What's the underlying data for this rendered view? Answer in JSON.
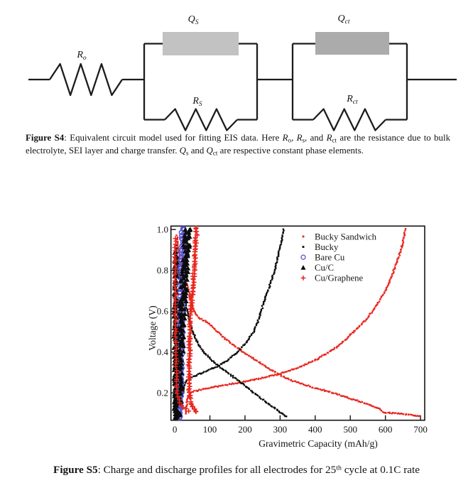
{
  "page": {
    "background": "#ffffff"
  },
  "figure_s4": {
    "component_labels": {
      "r_o": {
        "base": "R",
        "sub": "o"
      },
      "q_s": {
        "base": "Q",
        "sub": "S"
      },
      "r_s": {
        "base": "R",
        "sub": "S"
      },
      "q_ct": {
        "base": "Q",
        "sub": "ct"
      },
      "r_ct": {
        "base": "R",
        "sub": "ct"
      }
    },
    "colors": {
      "wire": "#1c1c1c",
      "q_s_box": "#c2c2c2",
      "q_ct_box": "#ababab"
    },
    "caption_segments": [
      {
        "t": "Figure S4",
        "b": true
      },
      {
        "t": ": Equivalent circuit model used for fitting EIS data. Here "
      },
      {
        "t": "R",
        "i": true
      },
      {
        "t": "o",
        "sub": true
      },
      {
        "t": ", "
      },
      {
        "t": "R",
        "i": true
      },
      {
        "t": "s",
        "sub": true
      },
      {
        "t": ", and "
      },
      {
        "t": "R",
        "i": true
      },
      {
        "t": "ct",
        "sub": true
      },
      {
        "t": " are the resistance due to bulk electrolyte, SEI layer and charge transfer. "
      },
      {
        "t": "Q",
        "i": true
      },
      {
        "t": "s",
        "sub": true
      },
      {
        "t": " and "
      },
      {
        "t": "Q",
        "i": true
      },
      {
        "t": "ct",
        "sub": true
      },
      {
        "t": " are respective constant phase elements."
      }
    ]
  },
  "figure_s5": {
    "caption_segments": [
      {
        "t": "Figure S5",
        "b": true
      },
      {
        "t": ": Charge and discharge profiles for all electrodes for 25"
      },
      {
        "t": "th",
        "sup": true
      },
      {
        "t": " cycle at 0.1C rate"
      }
    ]
  },
  "chart_data": {
    "type": "scatter",
    "title": "",
    "xlabel": "Gravimetric Capacity (mAh/g)",
    "ylabel": "Voltage (V)",
    "xlim": [
      -11,
      712
    ],
    "ylim": [
      0.066,
      1.017
    ],
    "x_ticks": [
      "0",
      "100",
      "200",
      "300",
      "400",
      "500",
      "600",
      "700"
    ],
    "x_tick_values": [
      0,
      100,
      200,
      300,
      400,
      500,
      600,
      700
    ],
    "y_ticks": [
      "0.2",
      "0.4",
      "0.6",
      "0.8",
      "1.0"
    ],
    "y_tick_values": [
      0.2,
      0.4,
      0.6,
      0.8,
      1.0
    ],
    "grid": false,
    "legend_position": "top-right",
    "axis_color": "#141414",
    "series": [
      {
        "name": "Bucky Sandwich",
        "color": "#e8261f",
        "marker": "dot",
        "branches": [
          {
            "name": "charge",
            "jitter": [
              0.8,
              0.8
            ],
            "points": [
              [
                30,
                0.1
              ],
              [
                34,
                0.15
              ],
              [
                38,
                0.185
              ],
              [
                50,
                0.205
              ],
              [
                90,
                0.222
              ],
              [
                150,
                0.24
              ],
              [
                220,
                0.262
              ],
              [
                281,
                0.286
              ],
              [
                312,
                0.3
              ],
              [
                360,
                0.33
              ],
              [
                400,
                0.36
              ],
              [
                440,
                0.4
              ],
              [
                474,
                0.44
              ],
              [
                510,
                0.5
              ],
              [
                548,
                0.565
              ],
              [
                575,
                0.63
              ],
              [
                600,
                0.7
              ],
              [
                620,
                0.78
              ],
              [
                638,
                0.865
              ],
              [
                650,
                0.935
              ],
              [
                657,
                1.005
              ]
            ]
          },
          {
            "name": "discharge",
            "jitter": [
              0.8,
              0.8
            ],
            "points": [
              [
                6,
                0.97
              ],
              [
                12,
                0.88
              ],
              [
                20,
                0.8
              ],
              [
                28,
                0.755
              ],
              [
                36,
                0.725
              ],
              [
                45,
                0.655
              ],
              [
                55,
                0.6
              ],
              [
                70,
                0.565
              ],
              [
                95,
                0.545
              ],
              [
                109,
                0.52
              ],
              [
                140,
                0.47
              ],
              [
                170,
                0.43
              ],
              [
                200,
                0.395
              ],
              [
                240,
                0.35
              ],
              [
                281,
                0.305
              ],
              [
                330,
                0.262
              ],
              [
                393,
                0.227
              ],
              [
                440,
                0.205
              ],
              [
                494,
                0.175
              ],
              [
                550,
                0.145
              ],
              [
                585,
                0.122
              ],
              [
                592,
                0.106
              ],
              [
                650,
                0.096
              ],
              [
                700,
                0.086
              ]
            ]
          }
        ]
      },
      {
        "name": "Bucky",
        "color": "#0c0c0c",
        "marker": "dot",
        "branches": [
          {
            "name": "charge",
            "jitter": [
              0.8,
              0.8
            ],
            "points": [
              [
                14,
                0.085
              ],
              [
                18,
                0.14
              ],
              [
                22,
                0.19
              ],
              [
                27,
                0.235
              ],
              [
                33,
                0.26
              ],
              [
                45,
                0.275
              ],
              [
                60,
                0.285
              ],
              [
                80,
                0.3
              ],
              [
                100,
                0.315
              ],
              [
                125,
                0.333
              ],
              [
                150,
                0.36
              ],
              [
                175,
                0.395
              ],
              [
                200,
                0.44
              ],
              [
                225,
                0.5
              ],
              [
                240,
                0.565
              ],
              [
                251,
                0.63
              ],
              [
                265,
                0.7
              ],
              [
                285,
                0.8
              ],
              [
                298,
                0.9
              ],
              [
                306,
                0.96
              ],
              [
                310,
                1.005
              ]
            ]
          },
          {
            "name": "discharge",
            "jitter": [
              0.8,
              0.8
            ],
            "points": [
              [
                4,
                0.92
              ],
              [
                8,
                0.84
              ],
              [
                14,
                0.76
              ],
              [
                22,
                0.69
              ],
              [
                30,
                0.64
              ],
              [
                36,
                0.6
              ],
              [
                46,
                0.53
              ],
              [
                58,
                0.47
              ],
              [
                72,
                0.425
              ],
              [
                90,
                0.385
              ],
              [
                110,
                0.353
              ],
              [
                125,
                0.333
              ],
              [
                150,
                0.3
              ],
              [
                175,
                0.268
              ],
              [
                200,
                0.235
              ],
              [
                225,
                0.2
              ],
              [
                250,
                0.168
              ],
              [
                275,
                0.137
              ],
              [
                295,
                0.112
              ],
              [
                308,
                0.096
              ],
              [
                318,
                0.082
              ]
            ]
          }
        ]
      },
      {
        "name": "Bare Cu",
        "color": "#5a55d4",
        "marker": "open-circle",
        "branches": [
          {
            "name": "a",
            "jitter": [
              1.5,
              1
            ],
            "passes": 2,
            "points": [
              [
                22,
                1.005
              ],
              [
                19,
                0.88
              ],
              [
                16,
                0.74
              ],
              [
                14,
                0.58
              ],
              [
                13,
                0.42
              ],
              [
                12,
                0.27
              ],
              [
                12,
                0.13
              ],
              [
                13,
                0.08
              ]
            ]
          },
          {
            "name": "b",
            "jitter": [
              1.5,
              1
            ],
            "passes": 2,
            "points": [
              [
                15,
                0.08
              ],
              [
                17,
                0.22
              ],
              [
                19,
                0.38
              ],
              [
                22,
                0.55
              ],
              [
                24,
                0.7
              ],
              [
                26,
                0.84
              ],
              [
                28,
                0.97
              ],
              [
                28,
                1.005
              ]
            ]
          }
        ]
      },
      {
        "name": "Cu/C",
        "color": "#0c0c0c",
        "marker": "triangle",
        "branches": [
          {
            "name": "a",
            "jitter": [
              2,
              1.5
            ],
            "passes": 2,
            "points": [
              [
                3,
                0.885
              ],
              [
                2,
                0.8
              ],
              [
                2,
                0.7
              ],
              [
                1,
                0.57
              ],
              [
                1,
                0.44
              ],
              [
                1,
                0.3
              ],
              [
                2,
                0.17
              ],
              [
                2,
                0.08
              ]
            ]
          },
          {
            "name": "b",
            "jitter": [
              5,
              1.5
            ],
            "passes": 3,
            "points": [
              [
                7,
                0.08
              ],
              [
                10,
                0.22
              ],
              [
                14,
                0.38
              ],
              [
                19,
                0.54
              ],
              [
                24,
                0.68
              ],
              [
                29,
                0.81
              ],
              [
                34,
                0.92
              ],
              [
                38,
                1.005
              ]
            ]
          }
        ]
      },
      {
        "name": "Cu/Graphene",
        "color": "#e8261f",
        "marker": "plus",
        "branches": [
          {
            "name": "a",
            "jitter": [
              1.5,
              1
            ],
            "passes": 2,
            "points": [
              [
                62,
                1.005
              ],
              [
                59,
                0.92
              ],
              [
                56,
                0.84
              ],
              [
                53,
                0.76
              ],
              [
                50,
                0.7
              ],
              [
                47,
                0.62
              ],
              [
                44,
                0.53
              ],
              [
                42,
                0.44
              ],
              [
                41,
                0.36
              ],
              [
                41,
                0.28
              ],
              [
                42,
                0.21
              ],
              [
                45,
                0.16
              ],
              [
                50,
                0.13
              ],
              [
                58,
                0.115
              ],
              [
                66,
                0.105
              ]
            ]
          },
          {
            "name": "b",
            "jitter": [
              1,
              1
            ],
            "points": [
              [
                2,
                0.955
              ],
              [
                1,
                0.87
              ],
              [
                1,
                0.76
              ],
              [
                2,
                0.64
              ],
              [
                2,
                0.52
              ],
              [
                3,
                0.4
              ],
              [
                4,
                0.3
              ],
              [
                6,
                0.225
              ],
              [
                9,
                0.185
              ],
              [
                14,
                0.158
              ],
              [
                21,
                0.138
              ],
              [
                30,
                0.12
              ],
              [
                40,
                0.108
              ]
            ]
          }
        ]
      }
    ]
  }
}
